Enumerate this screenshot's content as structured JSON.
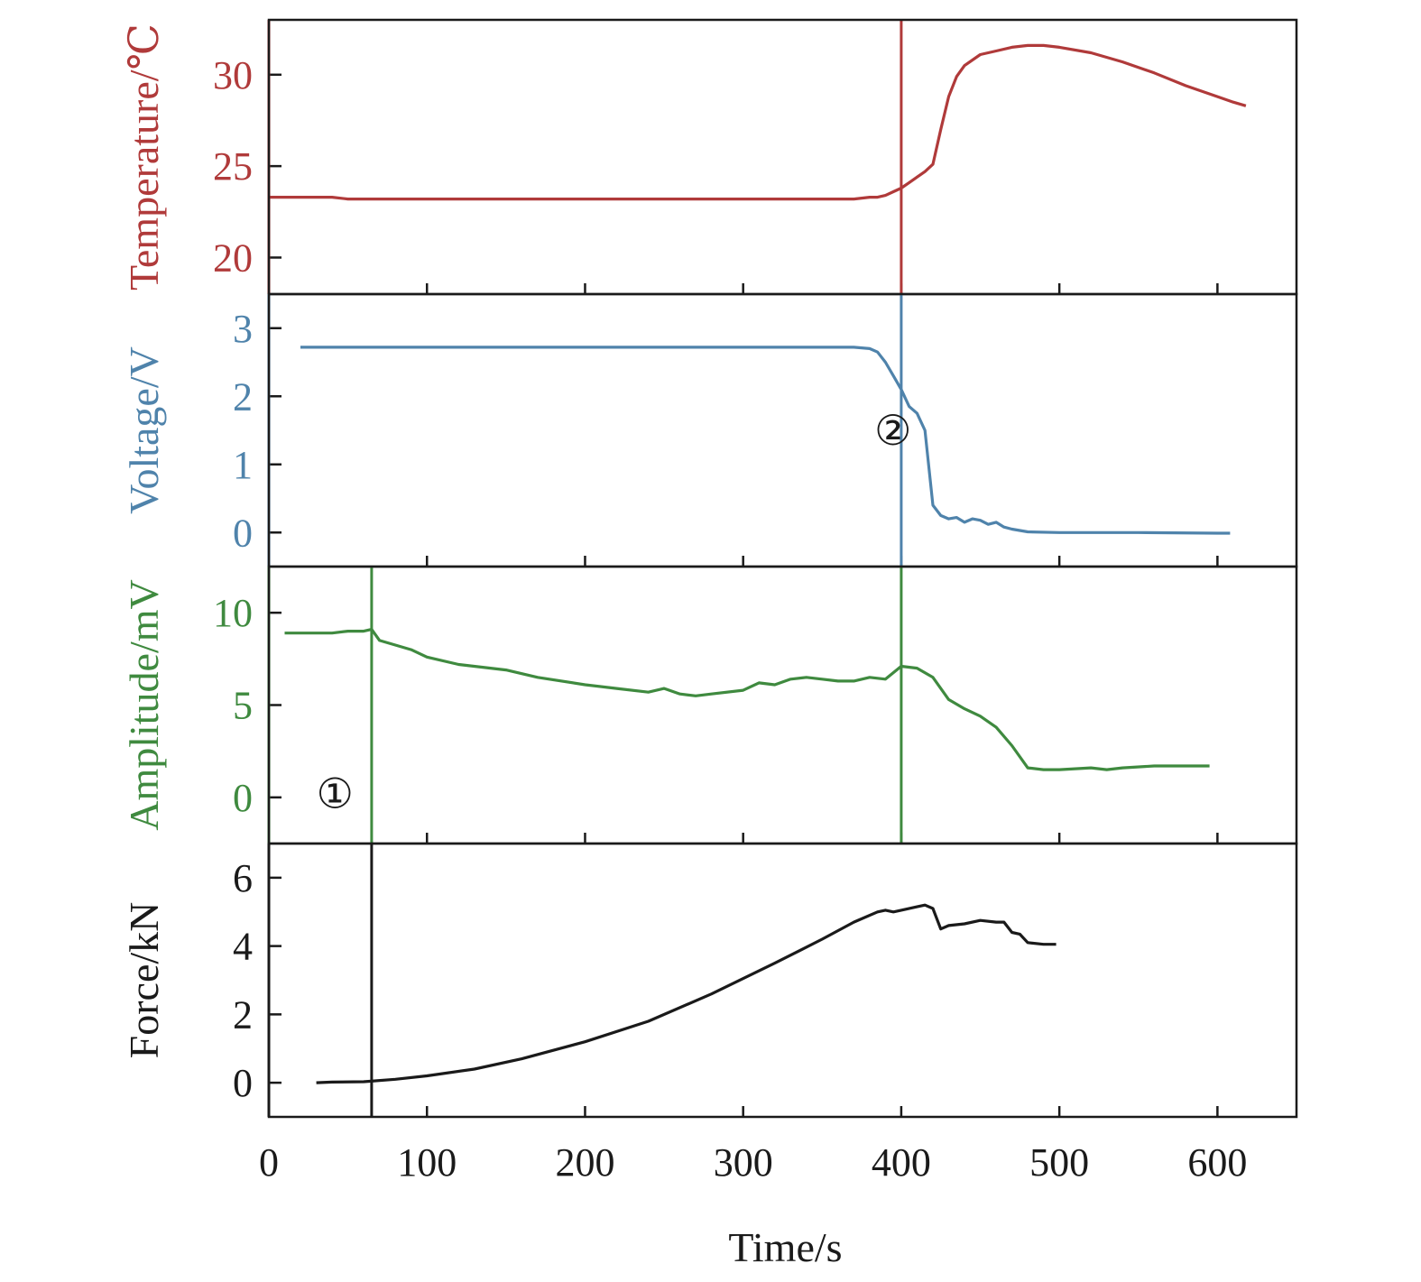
{
  "chart_data": {
    "type": "line",
    "layout": "stacked-panels-shared-x",
    "xlabel": "Time/s",
    "x_ticks": [
      0,
      100,
      200,
      300,
      400,
      500,
      600
    ],
    "xlim": [
      0,
      650
    ],
    "panels": [
      {
        "id": "temperature",
        "ylabel": "Temperature/℃",
        "color": "#b03a3a",
        "ylim": [
          18,
          33
        ],
        "y_ticks": [
          20,
          25,
          30
        ],
        "markers": [
          400
        ],
        "series": [
          {
            "x": [
              0,
              20,
              40,
              50,
              60,
              80,
              100,
              150,
              200,
              250,
              300,
              350,
              370,
              380,
              385,
              390,
              395,
              400,
              405,
              410,
              415,
              420,
              425,
              430,
              435,
              440,
              450,
              460,
              470,
              480,
              490,
              500,
              520,
              540,
              560,
              580,
              600,
              610,
              618
            ],
            "y": [
              23.3,
              23.3,
              23.3,
              23.2,
              23.2,
              23.2,
              23.2,
              23.2,
              23.2,
              23.2,
              23.2,
              23.2,
              23.2,
              23.3,
              23.3,
              23.4,
              23.6,
              23.8,
              24.1,
              24.4,
              24.7,
              25.1,
              27.0,
              28.8,
              29.9,
              30.5,
              31.1,
              31.3,
              31.5,
              31.6,
              31.6,
              31.5,
              31.2,
              30.7,
              30.1,
              29.4,
              28.8,
              28.5,
              28.3
            ]
          }
        ],
        "annotations": []
      },
      {
        "id": "voltage",
        "ylabel": "Voltage/V",
        "color": "#4f83ab",
        "ylim": [
          -0.5,
          3.5
        ],
        "y_ticks": [
          0,
          1,
          2,
          3
        ],
        "markers": [
          400
        ],
        "series": [
          {
            "x": [
              20,
              100,
              200,
              300,
              370,
              380,
              385,
              390,
              395,
              400,
              405,
              410,
              415,
              420,
              425,
              430,
              435,
              440,
              445,
              450,
              455,
              460,
              465,
              470,
              480,
              500,
              550,
              600,
              608
            ],
            "y": [
              2.72,
              2.72,
              2.72,
              2.72,
              2.72,
              2.7,
              2.65,
              2.5,
              2.3,
              2.1,
              1.85,
              1.75,
              1.5,
              0.4,
              0.25,
              0.2,
              0.22,
              0.15,
              0.2,
              0.18,
              0.12,
              0.15,
              0.08,
              0.05,
              0.01,
              0.0,
              0.0,
              -0.01,
              -0.01
            ]
          }
        ],
        "annotations": [
          {
            "label": "②",
            "x": 383,
            "y": 1.5
          }
        ]
      },
      {
        "id": "amplitude",
        "ylabel": "Amplitude/mV",
        "color": "#3f8a3f",
        "ylim": [
          -2.5,
          12.5
        ],
        "y_ticks": [
          0,
          5,
          10
        ],
        "markers": [
          65,
          400
        ],
        "series": [
          {
            "x": [
              10,
              30,
              40,
              50,
              60,
              65,
              70,
              90,
              100,
              120,
              150,
              170,
              200,
              220,
              240,
              250,
              260,
              270,
              280,
              300,
              310,
              320,
              330,
              340,
              350,
              360,
              370,
              380,
              390,
              400,
              410,
              420,
              430,
              440,
              450,
              460,
              470,
              480,
              490,
              500,
              520,
              530,
              540,
              560,
              580,
              595
            ],
            "y": [
              8.9,
              8.9,
              8.9,
              9.0,
              9.0,
              9.1,
              8.5,
              8.0,
              7.6,
              7.2,
              6.9,
              6.5,
              6.1,
              5.9,
              5.7,
              5.9,
              5.6,
              5.5,
              5.6,
              5.8,
              6.2,
              6.1,
              6.4,
              6.5,
              6.4,
              6.3,
              6.3,
              6.5,
              6.4,
              7.1,
              7.0,
              6.5,
              5.3,
              4.8,
              4.4,
              3.8,
              2.8,
              1.6,
              1.5,
              1.5,
              1.6,
              1.5,
              1.6,
              1.7,
              1.7,
              1.7
            ]
          }
        ],
        "annotations": [
          {
            "label": "①",
            "x": 30,
            "y": 0.2
          }
        ]
      },
      {
        "id": "force",
        "ylabel": "Force/kN",
        "color": "#1a1a1a",
        "ylim": [
          -1,
          7
        ],
        "y_ticks": [
          0,
          2,
          4,
          6
        ],
        "markers": [
          65
        ],
        "series": [
          {
            "x": [
              30,
              40,
              60,
              80,
              100,
              130,
              160,
              200,
              240,
              280,
              320,
              350,
              370,
              385,
              390,
              395,
              400,
              410,
              415,
              420,
              425,
              430,
              440,
              450,
              460,
              465,
              470,
              475,
              480,
              490,
              498
            ],
            "y": [
              0.0,
              0.02,
              0.03,
              0.1,
              0.2,
              0.4,
              0.7,
              1.2,
              1.8,
              2.6,
              3.5,
              4.2,
              4.7,
              5.0,
              5.05,
              5.0,
              5.05,
              5.15,
              5.2,
              5.1,
              4.5,
              4.6,
              4.65,
              4.75,
              4.7,
              4.7,
              4.4,
              4.35,
              4.1,
              4.05,
              4.05
            ]
          }
        ],
        "annotations": []
      }
    ]
  }
}
